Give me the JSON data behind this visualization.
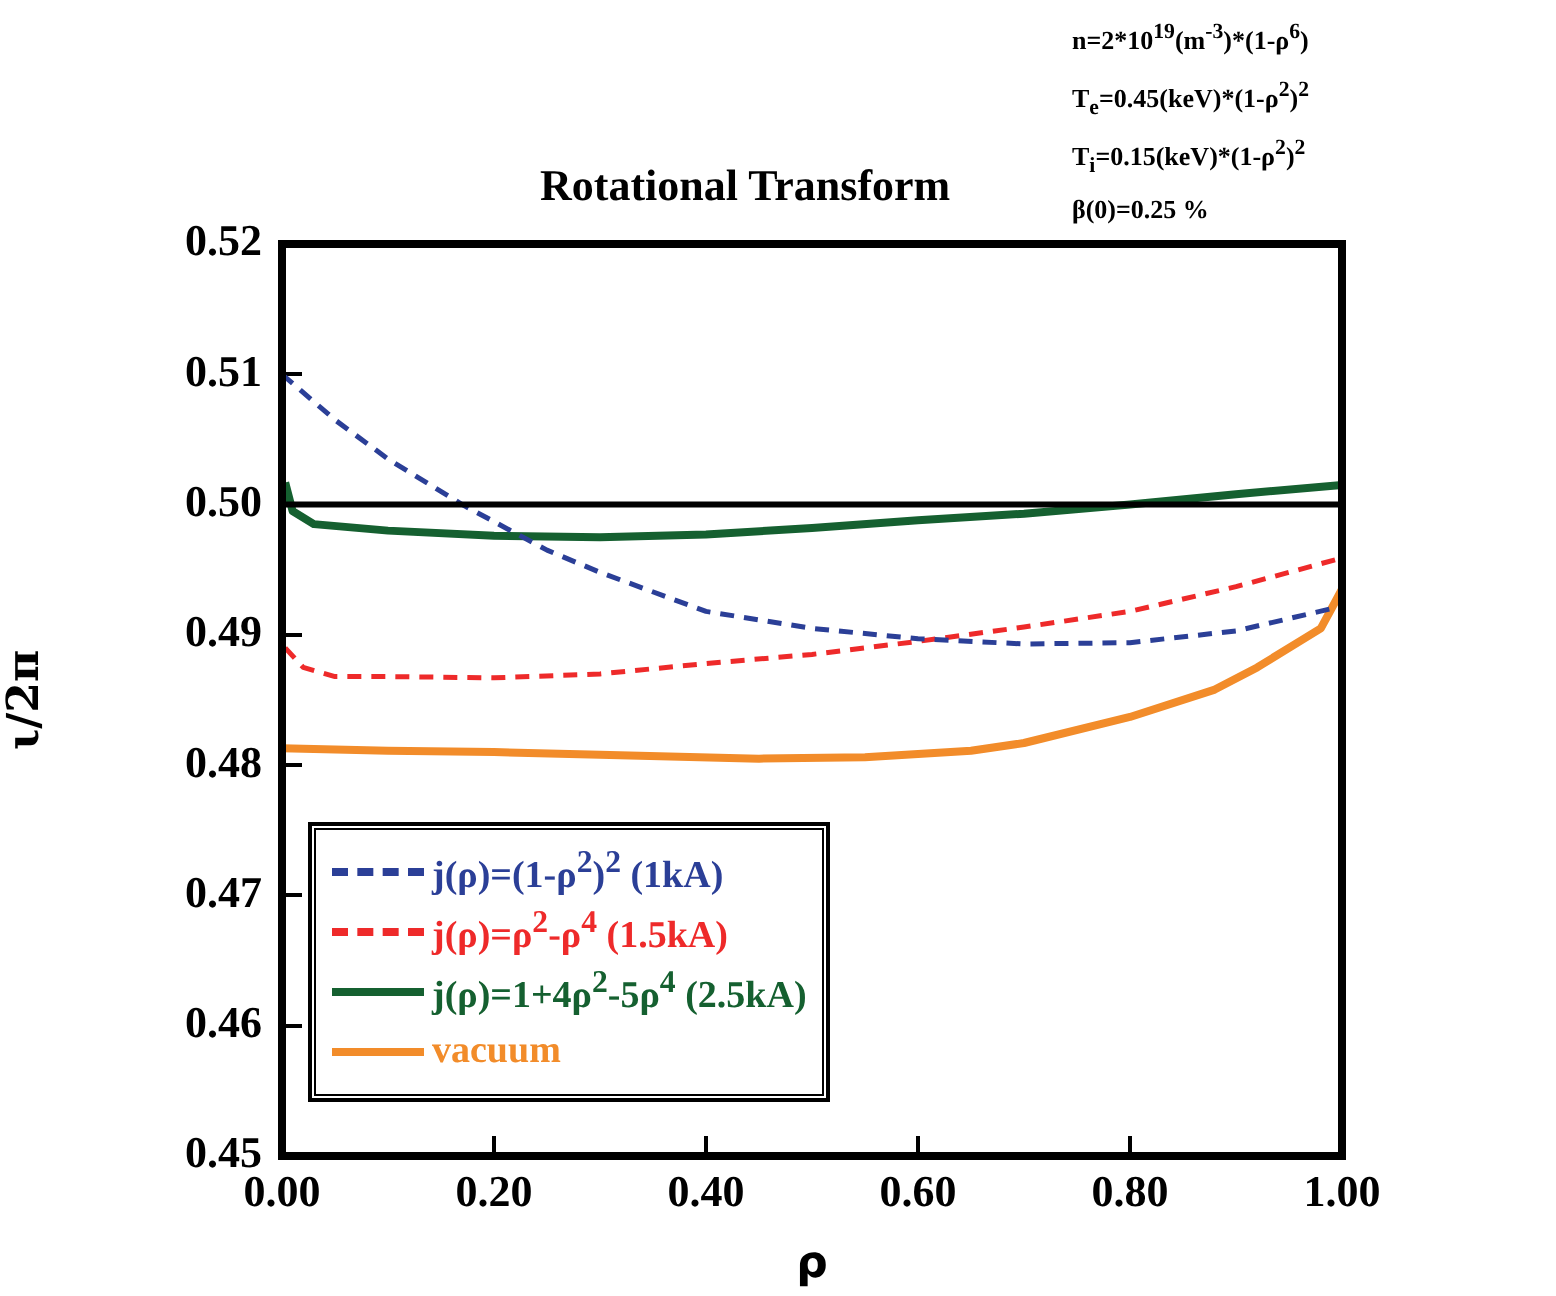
{
  "chart_data": {
    "type": "line",
    "title": "Rotational Transform",
    "xlabel": "ρ",
    "ylabel": "ι/2π",
    "annotations": [
      "n=2*10$^{19}$(m$^{-3}$)*(1-ρ$^{6}$)",
      "T$_{e}$=0.45(keV)*(1-ρ$^{2}$)$^{2}$",
      "T$_{i}$=0.15(keV)*(1-ρ$^{2}$)$^{2}$",
      "β(0)=0.25 %"
    ],
    "xlim": [
      0,
      1
    ],
    "xticks": [
      {
        "value": 0,
        "label": "0.00"
      },
      {
        "value": 0.2,
        "label": "0.20"
      },
      {
        "value": 0.4,
        "label": "0.40"
      },
      {
        "value": 0.6,
        "label": "0.60"
      },
      {
        "value": 0.8,
        "label": "0.80"
      },
      {
        "value": 1,
        "label": "1.00"
      }
    ],
    "ylim": [
      0.45,
      0.52
    ],
    "yticks": [
      {
        "value": 0.45,
        "label": "0.45"
      },
      {
        "value": 0.46,
        "label": "0.46"
      },
      {
        "value": 0.47,
        "label": "0.47"
      },
      {
        "value": 0.48,
        "label": "0.48"
      },
      {
        "value": 0.49,
        "label": "0.49"
      },
      {
        "value": 0.5,
        "label": "0.50"
      },
      {
        "value": 0.51,
        "label": "0.51"
      },
      {
        "value": 0.52,
        "label": "0.52"
      }
    ],
    "grid": false,
    "legend": "bottom left",
    "marker": "none",
    "ref_lines": [
      {
        "axis": "y",
        "value": 0.5,
        "color": "#000000"
      }
    ],
    "series": [
      {
        "name": "j(ρ)=(1-ρ$^{2}$)$^{2}$ (1kA)",
        "color": "#2b3f97",
        "line_style": "dashed",
        "x": [
          0,
          0.05,
          0.1,
          0.17,
          0.25,
          0.3,
          0.4,
          0.5,
          0.6,
          0.7,
          0.8,
          0.9,
          1.0
        ],
        "values": [
          0.51,
          0.5065,
          0.5035,
          0.5,
          0.4965,
          0.4948,
          0.4918,
          0.4905,
          0.4897,
          0.4893,
          0.4894,
          0.4903,
          0.4922
        ]
      },
      {
        "name": "j(ρ)=ρ$^{2}$-ρ$^{4}$ (1.5kA)",
        "color": "#ee2a2a",
        "line_style": "dashed",
        "x": [
          0.003,
          0.02,
          0.05,
          0.1,
          0.2,
          0.3,
          0.4,
          0.5,
          0.6,
          0.7,
          0.8,
          0.9,
          1.0
        ],
        "values": [
          0.489,
          0.4875,
          0.4868,
          0.4868,
          0.4867,
          0.487,
          0.4878,
          0.4885,
          0.4895,
          0.4906,
          0.4918,
          0.4937,
          0.4959
        ]
      },
      {
        "name": "j(ρ)=1+4ρ$^{2}$-5ρ$^{4}$ (2.5kA)",
        "color": "#156030",
        "line_style": "solid",
        "x": [
          0.003,
          0.01,
          0.03,
          0.1,
          0.2,
          0.3,
          0.4,
          0.5,
          0.6,
          0.7,
          0.8,
          0.9,
          1.0
        ],
        "values": [
          0.5017,
          0.4995,
          0.4985,
          0.498,
          0.4976,
          0.4975,
          0.4977,
          0.4982,
          0.4988,
          0.4993,
          0.5,
          0.5008,
          0.5015
        ]
      },
      {
        "name": "vacuum",
        "color": "#f28c2a",
        "line_style": "solid",
        "x": [
          0,
          0.1,
          0.2,
          0.3,
          0.45,
          0.55,
          0.65,
          0.7,
          0.8,
          0.88,
          0.92,
          0.96,
          0.98,
          1.0
        ],
        "values": [
          0.4813,
          0.4811,
          0.481,
          0.4808,
          0.4805,
          0.4806,
          0.4811,
          0.4817,
          0.4837,
          0.4858,
          0.4875,
          0.4895,
          0.4905,
          0.4935
        ]
      }
    ]
  }
}
